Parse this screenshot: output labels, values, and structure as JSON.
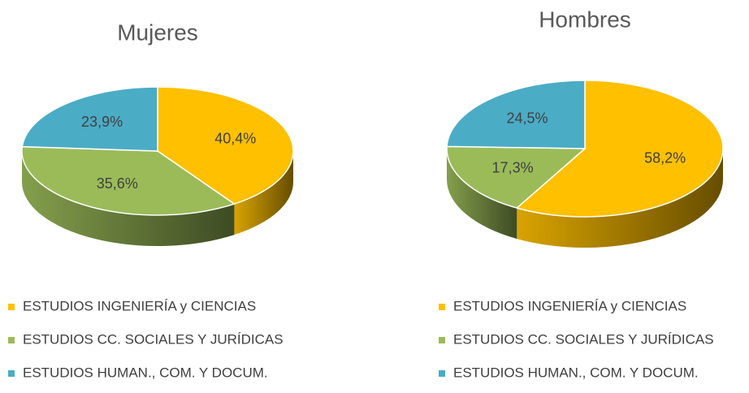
{
  "chart_data": [
    {
      "type": "pie",
      "title": "Mujeres",
      "categories": [
        "ESTUDIOS INGENIERÍA y CIENCIAS",
        "ESTUDIOS CC. SOCIALES Y JURÍDICAS",
        "ESTUDIOS HUMAN., COM. Y DOCUM."
      ],
      "values": [
        40.4,
        35.6,
        23.9
      ],
      "value_labels": [
        "40,4%",
        "35,6%",
        "23,9%"
      ],
      "colors": [
        "#FFC000",
        "#9BBB59",
        "#4BACC6"
      ]
    },
    {
      "type": "pie",
      "title": "Hombres",
      "categories": [
        "ESTUDIOS INGENIERÍA y CIENCIAS",
        "ESTUDIOS CC. SOCIALES Y JURÍDICAS",
        "ESTUDIOS HUMAN., COM. Y DOCUM."
      ],
      "values": [
        58.2,
        17.3,
        24.5
      ],
      "value_labels": [
        "58,2%",
        "17,3%",
        "24,5%"
      ],
      "colors": [
        "#FFC000",
        "#9BBB59",
        "#4BACC6"
      ]
    }
  ]
}
